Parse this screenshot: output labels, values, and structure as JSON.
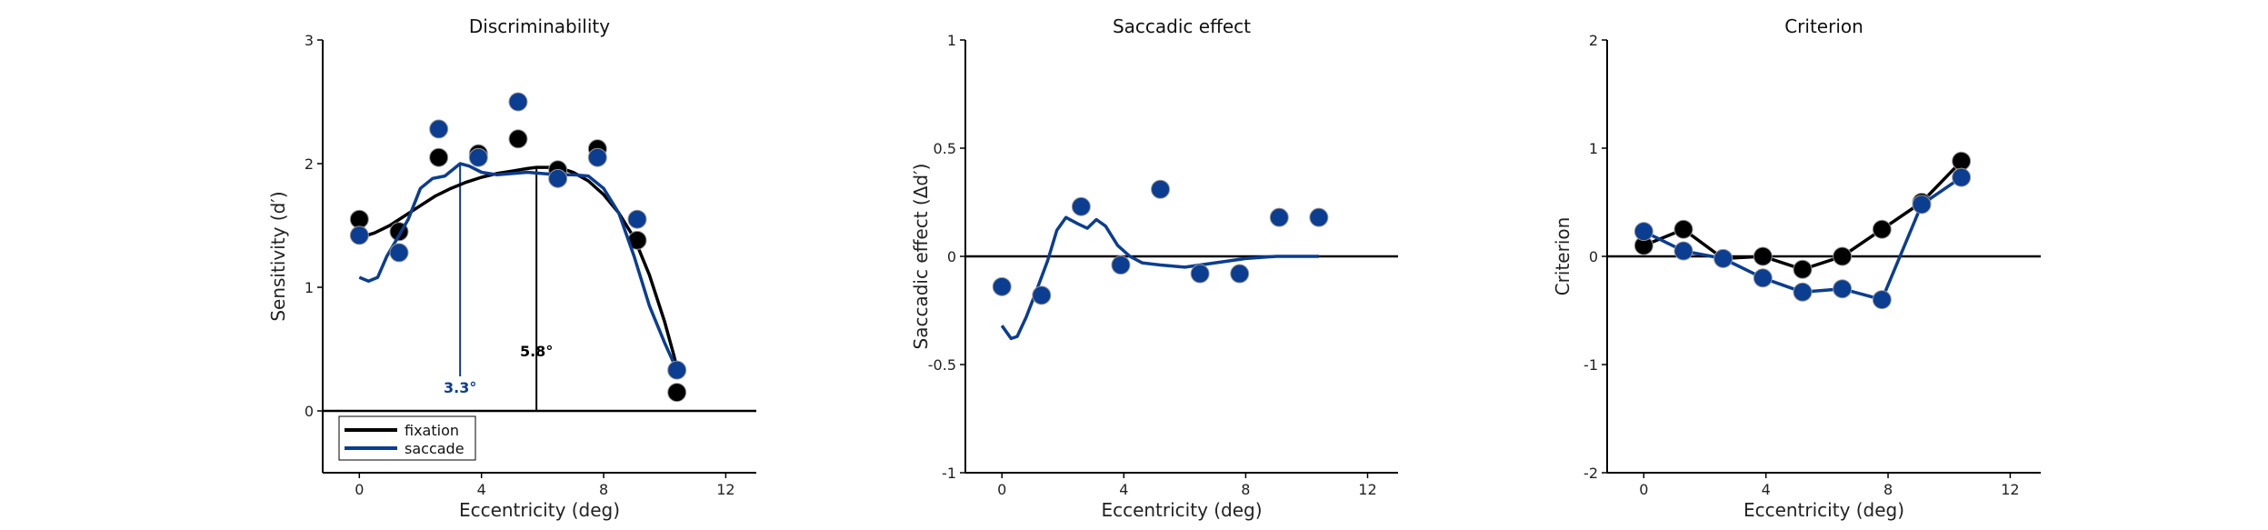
{
  "colors": {
    "fixation": "#000000",
    "saccade": "#0b3d91",
    "axis": "#000000"
  },
  "chart_data": [
    {
      "type": "scatter",
      "title": "Discriminability",
      "xlabel": "Eccentricity (deg)",
      "ylabel": "Sensitivity (d′)",
      "xlim": [
        -1.2,
        13
      ],
      "ylim": [
        -0.5,
        3
      ],
      "xticks": [
        0,
        4,
        8,
        12
      ],
      "yticks": [
        0,
        1,
        2,
        3
      ],
      "zero_line": 0,
      "legend": {
        "placement": "bottom-left",
        "entries": [
          "fixation",
          "saccade"
        ]
      },
      "series": [
        {
          "name": "fixation",
          "color": "#000000",
          "points": [
            [
              0,
              1.55
            ],
            [
              1.3,
              1.45
            ],
            [
              2.6,
              2.05
            ],
            [
              3.9,
              2.08
            ],
            [
              5.2,
              2.2
            ],
            [
              6.5,
              1.95
            ],
            [
              7.8,
              2.12
            ],
            [
              9.1,
              1.38
            ],
            [
              10.4,
              0.15
            ]
          ],
          "curve": [
            [
              0,
              1.4
            ],
            [
              0.5,
              1.44
            ],
            [
              1,
              1.5
            ],
            [
              1.5,
              1.58
            ],
            [
              2,
              1.66
            ],
            [
              2.5,
              1.74
            ],
            [
              3,
              1.8
            ],
            [
              3.5,
              1.85
            ],
            [
              4,
              1.89
            ],
            [
              4.5,
              1.92
            ],
            [
              5,
              1.94
            ],
            [
              5.5,
              1.96
            ],
            [
              5.8,
              1.97
            ],
            [
              6.5,
              1.97
            ],
            [
              7,
              1.93
            ],
            [
              7.5,
              1.86
            ],
            [
              8,
              1.75
            ],
            [
              8.5,
              1.6
            ],
            [
              9,
              1.4
            ],
            [
              9.5,
              1.1
            ],
            [
              10,
              0.72
            ],
            [
              10.3,
              0.45
            ],
            [
              10.4,
              0.35
            ]
          ]
        },
        {
          "name": "saccade",
          "color": "#0b3d91",
          "points": [
            [
              0,
              1.42
            ],
            [
              1.3,
              1.28
            ],
            [
              2.6,
              2.28
            ],
            [
              3.9,
              2.05
            ],
            [
              5.2,
              2.5
            ],
            [
              6.5,
              1.88
            ],
            [
              7.8,
              2.05
            ],
            [
              9.1,
              1.55
            ],
            [
              10.4,
              0.33
            ]
          ],
          "curve": [
            [
              0,
              1.08
            ],
            [
              0.3,
              1.05
            ],
            [
              0.6,
              1.08
            ],
            [
              0.9,
              1.25
            ],
            [
              1.3,
              1.42
            ],
            [
              1.6,
              1.55
            ],
            [
              2,
              1.8
            ],
            [
              2.4,
              1.88
            ],
            [
              2.8,
              1.9
            ],
            [
              3.3,
              2.0
            ],
            [
              3.6,
              1.98
            ],
            [
              4,
              1.93
            ],
            [
              4.5,
              1.91
            ],
            [
              5,
              1.92
            ],
            [
              5.5,
              1.93
            ],
            [
              6,
              1.92
            ],
            [
              6.5,
              1.91
            ],
            [
              7,
              1.91
            ],
            [
              7.5,
              1.9
            ],
            [
              8,
              1.8
            ],
            [
              8.5,
              1.6
            ],
            [
              9,
              1.25
            ],
            [
              9.5,
              0.85
            ],
            [
              10,
              0.55
            ],
            [
              10.4,
              0.33
            ]
          ]
        }
      ],
      "annotations": [
        {
          "text": "3.3°",
          "x": 3.3,
          "color": "#0b3d91"
        },
        {
          "text": "5.8°",
          "x": 5.8,
          "color": "#000000"
        }
      ]
    },
    {
      "type": "scatter",
      "title": "Saccadic effect",
      "xlabel": "Eccentricity (deg)",
      "ylabel": "Saccadic effect (Δd′)",
      "xlim": [
        -1.2,
        13
      ],
      "ylim": [
        -1,
        1
      ],
      "xticks": [
        0,
        4,
        8,
        12
      ],
      "yticks": [
        -1,
        -0.5,
        0,
        0.5,
        1
      ],
      "zero_line": 0,
      "series": [
        {
          "name": "saccade",
          "color": "#0b3d91",
          "points": [
            [
              0,
              -0.14
            ],
            [
              1.3,
              -0.18
            ],
            [
              2.6,
              0.23
            ],
            [
              3.9,
              -0.04
            ],
            [
              5.2,
              0.31
            ],
            [
              6.5,
              -0.08
            ],
            [
              7.8,
              -0.08
            ],
            [
              9.1,
              0.18
            ],
            [
              10.4,
              0.18
            ]
          ],
          "curve": [
            [
              0,
              -0.32
            ],
            [
              0.3,
              -0.38
            ],
            [
              0.5,
              -0.37
            ],
            [
              0.8,
              -0.28
            ],
            [
              1.1,
              -0.17
            ],
            [
              1.5,
              -0.02
            ],
            [
              1.8,
              0.12
            ],
            [
              2.1,
              0.18
            ],
            [
              2.5,
              0.15
            ],
            [
              2.8,
              0.13
            ],
            [
              3.1,
              0.17
            ],
            [
              3.4,
              0.14
            ],
            [
              3.8,
              0.05
            ],
            [
              4.2,
              0.0
            ],
            [
              4.6,
              -0.03
            ],
            [
              5.2,
              -0.04
            ],
            [
              6,
              -0.05
            ],
            [
              7,
              -0.03
            ],
            [
              8,
              -0.01
            ],
            [
              9,
              0.0
            ],
            [
              10.4,
              0.0
            ]
          ]
        }
      ]
    },
    {
      "type": "line",
      "title": "Criterion",
      "xlabel": "Eccentricity (deg)",
      "ylabel": "Criterion",
      "xlim": [
        -1.2,
        13
      ],
      "ylim": [
        -2,
        2
      ],
      "xticks": [
        0,
        4,
        8,
        12
      ],
      "yticks": [
        -2,
        -1,
        0,
        1,
        2
      ],
      "zero_line": 0,
      "series": [
        {
          "name": "fixation",
          "color": "#000000",
          "points": [
            [
              0,
              0.1
            ],
            [
              1.3,
              0.25
            ],
            [
              2.6,
              -0.02
            ],
            [
              3.9,
              0.0
            ],
            [
              5.2,
              -0.12
            ],
            [
              6.5,
              0.0
            ],
            [
              7.8,
              0.25
            ],
            [
              9.1,
              0.5
            ],
            [
              10.4,
              0.88
            ]
          ]
        },
        {
          "name": "saccade",
          "color": "#0b3d91",
          "points": [
            [
              0,
              0.23
            ],
            [
              1.3,
              0.05
            ],
            [
              2.6,
              -0.02
            ],
            [
              3.9,
              -0.2
            ],
            [
              5.2,
              -0.33
            ],
            [
              6.5,
              -0.3
            ],
            [
              7.8,
              -0.4
            ],
            [
              9.1,
              0.48
            ],
            [
              10.4,
              0.73
            ]
          ]
        }
      ]
    }
  ]
}
